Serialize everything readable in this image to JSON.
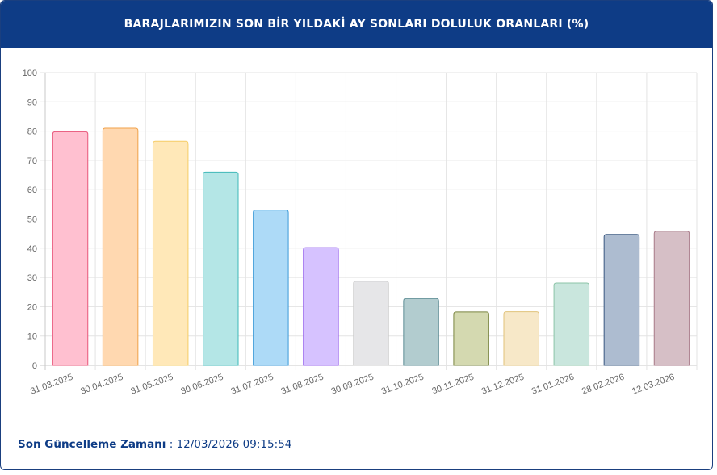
{
  "header": {
    "title": "BARAJLARIMIZIN SON BİR YILDAKİ AY SONLARI DOLULUK ORANLARI (%)"
  },
  "footer": {
    "label": "Son Güncelleme Zamanı",
    "separator": " : ",
    "value": "12/03/2026 09:15:54"
  },
  "chart_data": {
    "type": "bar",
    "categories": [
      "31.03.2025",
      "30.04.2025",
      "31.05.2025",
      "30.06.2025",
      "31.07.2025",
      "31.08.2025",
      "30.09.2025",
      "31.10.2025",
      "30.11.2025",
      "31.12.2025",
      "31.01.2026",
      "28.02.2026",
      "12.03.2026"
    ],
    "values": [
      79.8,
      81.0,
      76.5,
      66.0,
      53.0,
      40.2,
      28.7,
      22.8,
      18.2,
      18.3,
      28.1,
      44.7,
      45.8
    ],
    "ylim": [
      0,
      100
    ],
    "yticks": [
      0,
      10,
      20,
      30,
      40,
      50,
      60,
      70,
      80,
      90,
      100
    ],
    "grid": true,
    "colors": {
      "fill": [
        "#ffc0d0",
        "#ffd8b0",
        "#ffe8b8",
        "#b4e6e6",
        "#addaf7",
        "#d6c2ff",
        "#e6e6e8",
        "#b2cccf",
        "#d4d9b0",
        "#f7e8c8",
        "#c9e6dd",
        "#adbcd0",
        "#d6bfc6"
      ],
      "stroke": [
        "#e8567a",
        "#f0a24a",
        "#f5cc66",
        "#3fb8b8",
        "#3b9ad8",
        "#9966ee",
        "#cccccc",
        "#5c8c94",
        "#7a8540",
        "#e0c27a",
        "#8cc4a8",
        "#3a5880",
        "#a87a88"
      ]
    }
  }
}
